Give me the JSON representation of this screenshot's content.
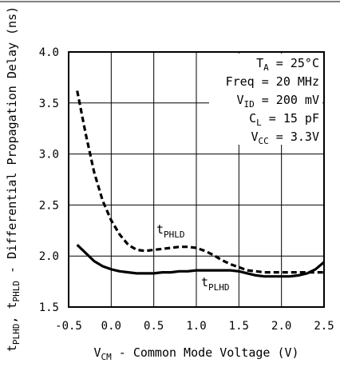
{
  "chart_data": {
    "type": "line",
    "xlabel": "V",
    "xlabel_sub": "CM",
    "xlabel_rest": " - Common Mode Voltage (V)",
    "ylabel_parts": {
      "t1": "t",
      "t1_sub": "PLHD",
      "sep": ", ",
      "t2": "t",
      "t2_sub": "PHLD",
      "rest": " - Differential Propagation Delay (ns)"
    },
    "xlim": [
      -0.5,
      2.5
    ],
    "ylim": [
      1.5,
      4.0
    ],
    "x_ticks": [
      "-0.5",
      "0.0",
      "0.5",
      "1.0",
      "1.5",
      "2.0",
      "2.5"
    ],
    "y_ticks": [
      "1.5",
      "2.0",
      "2.5",
      "3.0",
      "3.5",
      "4.0"
    ],
    "grid": true,
    "conditions": [
      {
        "main": "T",
        "sub": "A",
        "rest": " = 25°C"
      },
      {
        "main": "Freq = 20 MHz",
        "sub": "",
        "rest": ""
      },
      {
        "main": "V",
        "sub": "ID",
        "rest": " = 200 mV"
      },
      {
        "main": "C",
        "sub": "L",
        "rest": " = 15 pF"
      },
      {
        "main": "V",
        "sub": "CC",
        "rest": " = 3.3V"
      }
    ],
    "series": [
      {
        "name": "PHLD",
        "label_main": "t",
        "label_sub": "PHLD",
        "style": "dashed",
        "x": [
          -0.4,
          -0.3,
          -0.2,
          -0.1,
          0.0,
          0.1,
          0.2,
          0.3,
          0.4,
          0.5,
          0.6,
          0.7,
          0.8,
          0.9,
          1.0,
          1.1,
          1.2,
          1.3,
          1.4,
          1.5,
          1.6,
          1.7,
          1.8,
          1.9,
          2.0,
          2.1,
          2.2,
          2.3,
          2.4,
          2.5
        ],
        "y": [
          3.62,
          3.2,
          2.82,
          2.54,
          2.35,
          2.21,
          2.11,
          2.06,
          2.05,
          2.06,
          2.07,
          2.08,
          2.09,
          2.09,
          2.08,
          2.05,
          2.01,
          1.96,
          1.92,
          1.89,
          1.86,
          1.85,
          1.84,
          1.84,
          1.84,
          1.84,
          1.84,
          1.84,
          1.84,
          1.84
        ]
      },
      {
        "name": "PLHD",
        "label_main": "t",
        "label_sub": "PLHD",
        "style": "solid",
        "x": [
          -0.4,
          -0.3,
          -0.2,
          -0.1,
          0.0,
          0.1,
          0.2,
          0.3,
          0.4,
          0.5,
          0.6,
          0.7,
          0.8,
          0.9,
          1.0,
          1.1,
          1.2,
          1.3,
          1.4,
          1.5,
          1.6,
          1.7,
          1.8,
          1.9,
          2.0,
          2.1,
          2.2,
          2.3,
          2.4,
          2.5
        ],
        "y": [
          2.11,
          2.03,
          1.95,
          1.9,
          1.87,
          1.85,
          1.84,
          1.83,
          1.83,
          1.83,
          1.84,
          1.84,
          1.85,
          1.85,
          1.86,
          1.86,
          1.86,
          1.86,
          1.86,
          1.85,
          1.83,
          1.81,
          1.8,
          1.8,
          1.8,
          1.8,
          1.81,
          1.83,
          1.87,
          1.94
        ]
      }
    ]
  }
}
